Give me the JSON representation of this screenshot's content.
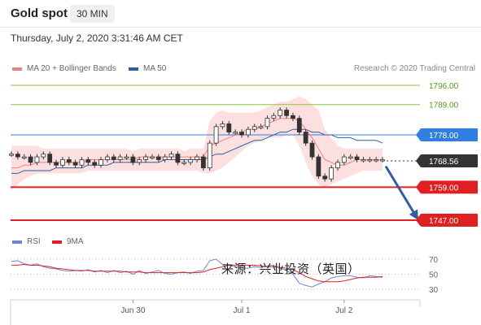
{
  "header": {
    "title": "Gold spot",
    "timeframe": "30 MIN"
  },
  "timestamp": "Thursday, July 2, 2020 3:31:46 AM CET",
  "legend": {
    "ma20_label": "MA 20 + Bollinger Bands",
    "ma50_label": "MA 50",
    "ma20_color": "#f08080",
    "ma50_color": "#2f5fa0",
    "copyright": "Research © 2020 Trading Central"
  },
  "rsi_legend": {
    "rsi_label": "RSI",
    "ma9_label": "9MA",
    "rsi_color": "#6b86d6",
    "ma9_color": "#e02020"
  },
  "watermark": "来源：兴业投资（英国）",
  "chart_data": {
    "type": "line",
    "price_axis": {
      "min": 1741,
      "max": 1799
    },
    "levels": [
      {
        "value": 1796.0,
        "label": "1796.00",
        "color": "#8dc63f",
        "style": "thin"
      },
      {
        "value": 1789.0,
        "label": "1789.00",
        "color": "#8dc63f",
        "style": "thin"
      },
      {
        "value": 1778.0,
        "label": "1778.00",
        "color": "#2f7fe0",
        "style": "blue"
      },
      {
        "value": 1768.56,
        "label": "1768.56",
        "color": "#333333",
        "style": "current"
      },
      {
        "value": 1759.0,
        "label": "1759.00",
        "color": "#e02020",
        "style": "support"
      },
      {
        "value": 1747.0,
        "label": "1747.00",
        "color": "#e02020",
        "style": "support"
      }
    ],
    "x_labels": [
      "Jun 30",
      "Jul 1",
      "Jul 2"
    ],
    "x_label_idx": [
      19,
      36,
      52
    ],
    "price_series": [
      1771,
      1770,
      1770,
      1768,
      1770,
      1771,
      1768,
      1767,
      1769,
      1768,
      1767,
      1769,
      1768,
      1767,
      1769,
      1770,
      1769,
      1770,
      1770,
      1768,
      1769,
      1770,
      1770,
      1769,
      1770,
      1771,
      1768,
      1768,
      1769,
      1770,
      1766,
      1775,
      1781,
      1782,
      1779,
      1779,
      1778,
      1780,
      1781,
      1781,
      1784,
      1785,
      1787,
      1785,
      1784,
      1779,
      1775,
      1770,
      1763,
      1762,
      1766,
      1768,
      1770,
      1770,
      1769,
      1769,
      1769,
      1769,
      1769
    ],
    "ma20": [
      1766,
      1766,
      1767,
      1767,
      1768,
      1768,
      1768,
      1768,
      1768,
      1768,
      1768,
      1768,
      1769,
      1769,
      1769,
      1769,
      1769,
      1769,
      1769,
      1769,
      1770,
      1770,
      1770,
      1770,
      1770,
      1770,
      1770,
      1770,
      1770,
      1770,
      1770,
      1774,
      1775,
      1776,
      1777,
      1778,
      1779,
      1780,
      1780,
      1781,
      1782,
      1783,
      1784,
      1784,
      1784,
      1783,
      1780,
      1777,
      1773,
      1769,
      1768,
      1767,
      1767,
      1768,
      1769,
      1769,
      1769,
      1769,
      1769
    ],
    "ma50": [
      1764,
      1764,
      1765,
      1765,
      1765,
      1765,
      1765,
      1766,
      1766,
      1766,
      1766,
      1766,
      1767,
      1767,
      1767,
      1767,
      1768,
      1768,
      1768,
      1768,
      1768,
      1768,
      1768,
      1768,
      1769,
      1769,
      1769,
      1769,
      1769,
      1769,
      1769,
      1770,
      1771,
      1771,
      1772,
      1773,
      1774,
      1775,
      1776,
      1776,
      1777,
      1778,
      1779,
      1779,
      1780,
      1780,
      1780,
      1779,
      1779,
      1778,
      1778,
      1777,
      1777,
      1777,
      1776,
      1776,
      1776,
      1776,
      1775
    ],
    "bb_upper": [
      1774,
      1774,
      1774,
      1774,
      1774,
      1773,
      1773,
      1773,
      1773,
      1773,
      1773,
      1773,
      1773,
      1773,
      1773,
      1773,
      1773,
      1773,
      1773,
      1772,
      1773,
      1773,
      1773,
      1773,
      1773,
      1773,
      1773,
      1772,
      1773,
      1773,
      1773,
      1783,
      1786,
      1787,
      1786,
      1786,
      1786,
      1786,
      1786,
      1787,
      1788,
      1789,
      1790,
      1790,
      1791,
      1792,
      1791,
      1789,
      1787,
      1780,
      1777,
      1774,
      1773,
      1773,
      1773,
      1773,
      1773,
      1773,
      1773
    ],
    "bb_lower": [
      1758,
      1760,
      1762,
      1763,
      1764,
      1764,
      1764,
      1764,
      1764,
      1764,
      1764,
      1764,
      1765,
      1765,
      1765,
      1765,
      1765,
      1765,
      1765,
      1765,
      1765,
      1765,
      1765,
      1765,
      1765,
      1765,
      1765,
      1765,
      1765,
      1765,
      1764,
      1764,
      1765,
      1766,
      1768,
      1770,
      1772,
      1774,
      1775,
      1776,
      1777,
      1777,
      1777,
      1778,
      1778,
      1774,
      1768,
      1763,
      1760,
      1759,
      1760,
      1761,
      1762,
      1763,
      1764,
      1765,
      1765,
      1765,
      1765
    ],
    "rsi_axis": {
      "min": 20,
      "max": 80,
      "ticks": [
        70,
        50,
        30
      ]
    },
    "rsi": [
      67,
      68,
      64,
      62,
      64,
      60,
      58,
      57,
      55,
      54,
      55,
      54,
      56,
      53,
      55,
      52,
      55,
      52,
      54,
      50,
      55,
      51,
      53,
      55,
      51,
      50,
      52,
      53,
      51,
      54,
      55,
      68,
      70,
      63,
      62,
      60,
      58,
      58,
      60,
      59,
      61,
      62,
      58,
      55,
      50,
      38,
      35,
      33,
      37,
      40,
      45,
      47,
      48,
      48,
      46,
      45,
      48,
      47,
      46
    ],
    "rsi_ma9": [
      62,
      62,
      63,
      62,
      62,
      61,
      60,
      58,
      57,
      56,
      55,
      55,
      55,
      54,
      54,
      54,
      54,
      54,
      53,
      53,
      53,
      52,
      52,
      52,
      52,
      52,
      52,
      52,
      52,
      52,
      53,
      56,
      58,
      60,
      62,
      62,
      62,
      62,
      62,
      61,
      60,
      60,
      59,
      58,
      56,
      52,
      47,
      44,
      41,
      40,
      40,
      40,
      41,
      43,
      45,
      46,
      46,
      46,
      47
    ],
    "projection": {
      "from_idx": 58,
      "from_value": 1766,
      "to_value": 1748
    }
  }
}
